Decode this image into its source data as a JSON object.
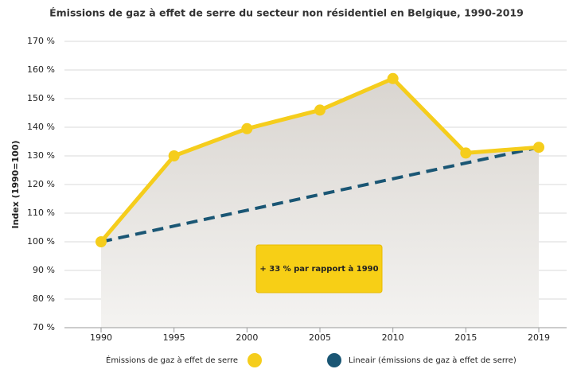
{
  "chart_data": {
    "type": "line",
    "title": "Émissions de gaz à effet de serre du secteur non résidentiel en Belgique, 1990-2019",
    "y_label": "Index (1990=100)",
    "annotation": "+ 33 % par rapport à 1990",
    "categories": [
      "1990",
      "1995",
      "2000",
      "2005",
      "2010",
      "2015",
      "2019"
    ],
    "series": [
      {
        "name": "Émissions de gaz à effet de serre",
        "color": "#f5cd1c",
        "line_style": "solid",
        "area": true,
        "markers": true,
        "values": [
          100,
          130,
          139.5,
          146,
          157,
          131,
          133
        ]
      },
      {
        "name": "Lineair (émissions de gaz à effet de serre)",
        "color": "#1a5674",
        "line_style": "dashed",
        "area": false,
        "markers": false,
        "values": [
          100,
          105.5,
          111,
          116.5,
          122,
          127.5,
          133
        ]
      }
    ],
    "ylim": [
      70,
      170
    ],
    "yticks": [
      {
        "value": 70,
        "label": "70 %"
      },
      {
        "value": 80,
        "label": "80 %"
      },
      {
        "value": 90,
        "label": "90 %"
      },
      {
        "value": 100,
        "label": "100 %"
      },
      {
        "value": 110,
        "label": "110 %"
      },
      {
        "value": 120,
        "label": "120 %"
      },
      {
        "value": 130,
        "label": "130 %"
      },
      {
        "value": 140,
        "label": "140 %"
      },
      {
        "value": 150,
        "label": "150 %"
      },
      {
        "value": 160,
        "label": "160 %"
      },
      {
        "value": 170,
        "label": "170 %"
      }
    ],
    "grid": true
  }
}
